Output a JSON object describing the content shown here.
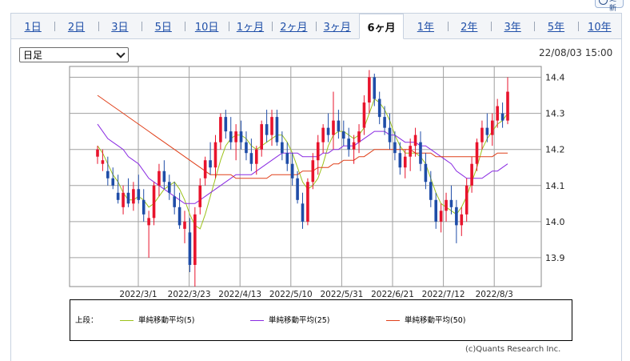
{
  "header_button": {
    "label": "更新"
  },
  "tabs": [
    "1日",
    "2日",
    "3日",
    "5日",
    "10日",
    "1ヶ月",
    "2ヶ月",
    "3ヶ月",
    "6ヶ月",
    "1年",
    "2年",
    "3年",
    "5年",
    "10年"
  ],
  "active_tab": 8,
  "interval_select": {
    "value": "日足"
  },
  "timestamp": "22/08/03 15:00",
  "legend": {
    "prefix": "上段：",
    "items": [
      {
        "label": "単純移動平均(5)",
        "color": "#9cc21a"
      },
      {
        "label": "単純移動平均(25)",
        "color": "#8a2be2"
      },
      {
        "label": "単純移動平均(50)",
        "color": "#e0401a"
      }
    ]
  },
  "credit": "(c)Quants Research Inc.",
  "chart_data": {
    "type": "candlestick",
    "x_tick_labels": [
      "2022/3/1",
      "2022/3/23",
      "2022/4/13",
      "2022/5/10",
      "2022/5/31",
      "2022/6/21",
      "2022/7/12",
      "2022/8/3"
    ],
    "y_tick_labels": [
      "14.4",
      "14.3",
      "14.2",
      "14.1",
      "14.0",
      "13.9"
    ],
    "ylim": [
      13.82,
      14.43
    ],
    "grid": true,
    "up_color": "#e8132c",
    "down_color": "#1f4da8",
    "candles": [
      [
        14.18,
        14.21,
        14.16,
        14.2
      ],
      [
        14.16,
        14.2,
        14.14,
        14.17
      ],
      [
        14.14,
        14.18,
        14.1,
        14.12
      ],
      [
        14.12,
        14.15,
        14.09,
        14.1
      ],
      [
        14.08,
        14.13,
        14.05,
        14.06
      ],
      [
        14.04,
        14.1,
        14.02,
        14.08
      ],
      [
        14.08,
        14.12,
        14.04,
        14.05
      ],
      [
        14.05,
        14.11,
        14.03,
        14.09
      ],
      [
        14.09,
        14.13,
        14.05,
        14.06
      ],
      [
        14.06,
        14.09,
        14.0,
        14.02
      ],
      [
        13.99,
        14.03,
        13.9,
        14.01
      ],
      [
        14.01,
        14.11,
        13.99,
        14.1
      ],
      [
        14.1,
        14.16,
        14.07,
        14.14
      ],
      [
        14.14,
        14.17,
        14.09,
        14.11
      ],
      [
        14.11,
        14.13,
        14.06,
        14.08
      ],
      [
        14.07,
        14.11,
        14.02,
        14.04
      ],
      [
        14.04,
        14.08,
        13.98,
        13.99
      ],
      [
        13.98,
        14.03,
        13.94,
        14.0
      ],
      [
        13.97,
        14.01,
        13.86,
        13.88
      ],
      [
        13.88,
        14.04,
        13.82,
        14.02
      ],
      [
        14.04,
        14.12,
        14.02,
        14.1
      ],
      [
        14.12,
        14.18,
        14.1,
        14.17
      ],
      [
        14.17,
        14.22,
        14.13,
        14.15
      ],
      [
        14.15,
        14.24,
        14.12,
        14.22
      ],
      [
        14.22,
        14.3,
        14.2,
        14.29
      ],
      [
        14.29,
        14.31,
        14.23,
        14.25
      ],
      [
        14.25,
        14.29,
        14.2,
        14.22
      ],
      [
        14.22,
        14.27,
        14.17,
        14.25
      ],
      [
        14.25,
        14.28,
        14.2,
        14.22
      ],
      [
        14.22,
        14.25,
        14.17,
        14.19
      ],
      [
        14.19,
        14.23,
        14.14,
        14.16
      ],
      [
        14.16,
        14.21,
        14.13,
        14.2
      ],
      [
        14.2,
        14.28,
        14.18,
        14.27
      ],
      [
        14.27,
        14.31,
        14.22,
        14.24
      ],
      [
        14.24,
        14.31,
        14.21,
        14.29
      ],
      [
        14.29,
        14.31,
        14.21,
        14.22
      ],
      [
        14.22,
        14.25,
        14.17,
        14.19
      ],
      [
        14.19,
        14.22,
        14.14,
        14.16
      ],
      [
        14.16,
        14.19,
        14.1,
        14.12
      ],
      [
        14.12,
        14.14,
        14.05,
        14.06
      ],
      [
        14.05,
        14.08,
        13.98,
        14.0
      ],
      [
        14.0,
        14.12,
        13.99,
        14.11
      ],
      [
        14.11,
        14.19,
        14.09,
        14.17
      ],
      [
        14.17,
        14.24,
        14.13,
        14.22
      ],
      [
        14.22,
        14.27,
        14.19,
        14.26
      ],
      [
        14.26,
        14.3,
        14.22,
        14.24
      ],
      [
        14.24,
        14.36,
        14.2,
        14.28
      ],
      [
        14.28,
        14.31,
        14.23,
        14.25
      ],
      [
        14.25,
        14.28,
        14.21,
        14.23
      ],
      [
        14.23,
        14.26,
        14.18,
        14.2
      ],
      [
        14.2,
        14.24,
        14.16,
        14.22
      ],
      [
        14.22,
        14.27,
        14.19,
        14.25
      ],
      [
        14.26,
        14.35,
        14.24,
        14.33
      ],
      [
        14.33,
        14.42,
        14.3,
        14.4
      ],
      [
        14.4,
        14.41,
        14.32,
        14.34
      ],
      [
        14.34,
        14.36,
        14.27,
        14.29
      ],
      [
        14.29,
        14.32,
        14.24,
        14.26
      ],
      [
        14.26,
        14.3,
        14.2,
        14.22
      ],
      [
        14.22,
        14.25,
        14.17,
        14.19
      ],
      [
        14.19,
        14.22,
        14.13,
        14.15
      ],
      [
        14.15,
        14.2,
        14.12,
        14.18
      ],
      [
        14.18,
        14.23,
        14.14,
        14.21
      ],
      [
        14.21,
        14.26,
        14.18,
        14.24
      ],
      [
        14.22,
        14.25,
        14.14,
        14.16
      ],
      [
        14.16,
        14.19,
        14.09,
        14.11
      ],
      [
        14.11,
        14.14,
        14.04,
        14.06
      ],
      [
        14.06,
        14.08,
        13.98,
        14.0
      ],
      [
        14.0,
        14.05,
        13.97,
        14.03
      ],
      [
        14.03,
        14.08,
        14.0,
        14.06
      ],
      [
        14.06,
        14.1,
        14.02,
        14.04
      ],
      [
        14.04,
        14.06,
        13.94,
        13.99
      ],
      [
        13.99,
        14.04,
        13.96,
        14.02
      ],
      [
        14.02,
        14.12,
        14.0,
        14.1
      ],
      [
        14.1,
        14.18,
        14.08,
        14.16
      ],
      [
        14.16,
        14.23,
        14.14,
        14.22
      ],
      [
        14.22,
        14.28,
        14.2,
        14.26
      ],
      [
        14.26,
        14.3,
        14.22,
        14.24
      ],
      [
        14.24,
        14.3,
        14.21,
        14.28
      ],
      [
        14.28,
        14.34,
        14.26,
        14.32
      ],
      [
        14.3,
        14.33,
        14.26,
        14.28
      ],
      [
        14.28,
        14.4,
        14.27,
        14.36
      ]
    ],
    "series": [
      {
        "name": "単純移動平均(5)",
        "values": [
          14.21,
          14.19,
          14.16,
          14.13,
          14.11,
          14.08,
          14.06,
          14.06,
          14.07,
          14.06,
          14.04,
          14.05,
          14.07,
          14.09,
          14.1,
          14.11,
          14.09,
          14.06,
          14.02,
          13.99,
          13.98,
          14.02,
          14.07,
          14.12,
          14.17,
          14.21,
          14.23,
          14.24,
          14.24,
          14.23,
          14.21,
          14.2,
          14.21,
          14.22,
          14.23,
          14.24,
          14.24,
          14.22,
          14.19,
          14.15,
          14.11,
          14.09,
          14.1,
          14.12,
          14.16,
          14.21,
          14.24,
          14.25,
          14.25,
          14.24,
          14.23,
          14.24,
          14.26,
          14.3,
          14.34,
          14.33,
          14.31,
          14.28,
          14.24,
          14.21,
          14.19,
          14.19,
          14.19,
          14.18,
          14.16,
          14.12,
          14.08,
          14.05,
          14.04,
          14.03,
          14.02,
          14.04,
          14.07,
          14.11,
          14.15,
          14.2,
          14.23,
          14.25,
          14.27,
          14.28,
          14.3
        ]
      },
      {
        "name": "単純移動平均(25)",
        "values": [
          14.27,
          14.25,
          14.23,
          14.22,
          14.21,
          14.2,
          14.18,
          14.17,
          14.16,
          14.14,
          14.12,
          14.11,
          14.1,
          14.09,
          14.08,
          14.07,
          14.06,
          14.05,
          14.05,
          14.05,
          14.06,
          14.07,
          14.08,
          14.09,
          14.1,
          14.11,
          14.12,
          14.13,
          14.13,
          14.13,
          14.13,
          14.14,
          14.15,
          14.16,
          14.17,
          14.18,
          14.19,
          14.19,
          14.19,
          14.19,
          14.18,
          14.18,
          14.18,
          14.18,
          14.19,
          14.19,
          14.2,
          14.2,
          14.21,
          14.21,
          14.21,
          14.22,
          14.23,
          14.24,
          14.25,
          14.25,
          14.25,
          14.24,
          14.24,
          14.23,
          14.22,
          14.22,
          14.22,
          14.21,
          14.21,
          14.2,
          14.19,
          14.18,
          14.17,
          14.16,
          14.14,
          14.13,
          14.12,
          14.12,
          14.12,
          14.12,
          14.13,
          14.14,
          14.14,
          14.15,
          14.16
        ]
      },
      {
        "name": "単純移動平均(50)",
        "values": [
          14.35,
          14.34,
          14.33,
          14.32,
          14.31,
          14.3,
          14.29,
          14.28,
          14.27,
          14.26,
          14.25,
          14.24,
          14.23,
          14.22,
          14.21,
          14.2,
          14.19,
          14.18,
          14.17,
          14.16,
          14.15,
          14.14,
          14.13,
          14.13,
          14.13,
          14.13,
          14.13,
          14.12,
          14.12,
          14.12,
          14.12,
          14.12,
          14.12,
          14.12,
          14.13,
          14.13,
          14.13,
          14.13,
          14.13,
          14.13,
          14.14,
          14.14,
          14.14,
          14.15,
          14.15,
          14.15,
          14.16,
          14.16,
          14.17,
          14.17,
          14.17,
          14.18,
          14.18,
          14.19,
          14.2,
          14.2,
          14.2,
          14.2,
          14.2,
          14.2,
          14.2,
          14.2,
          14.19,
          14.19,
          14.19,
          14.19,
          14.18,
          14.18,
          14.18,
          14.18,
          14.18,
          14.18,
          14.18,
          14.18,
          14.18,
          14.18,
          14.18,
          14.18,
          14.19,
          14.19,
          14.19
        ]
      }
    ]
  }
}
